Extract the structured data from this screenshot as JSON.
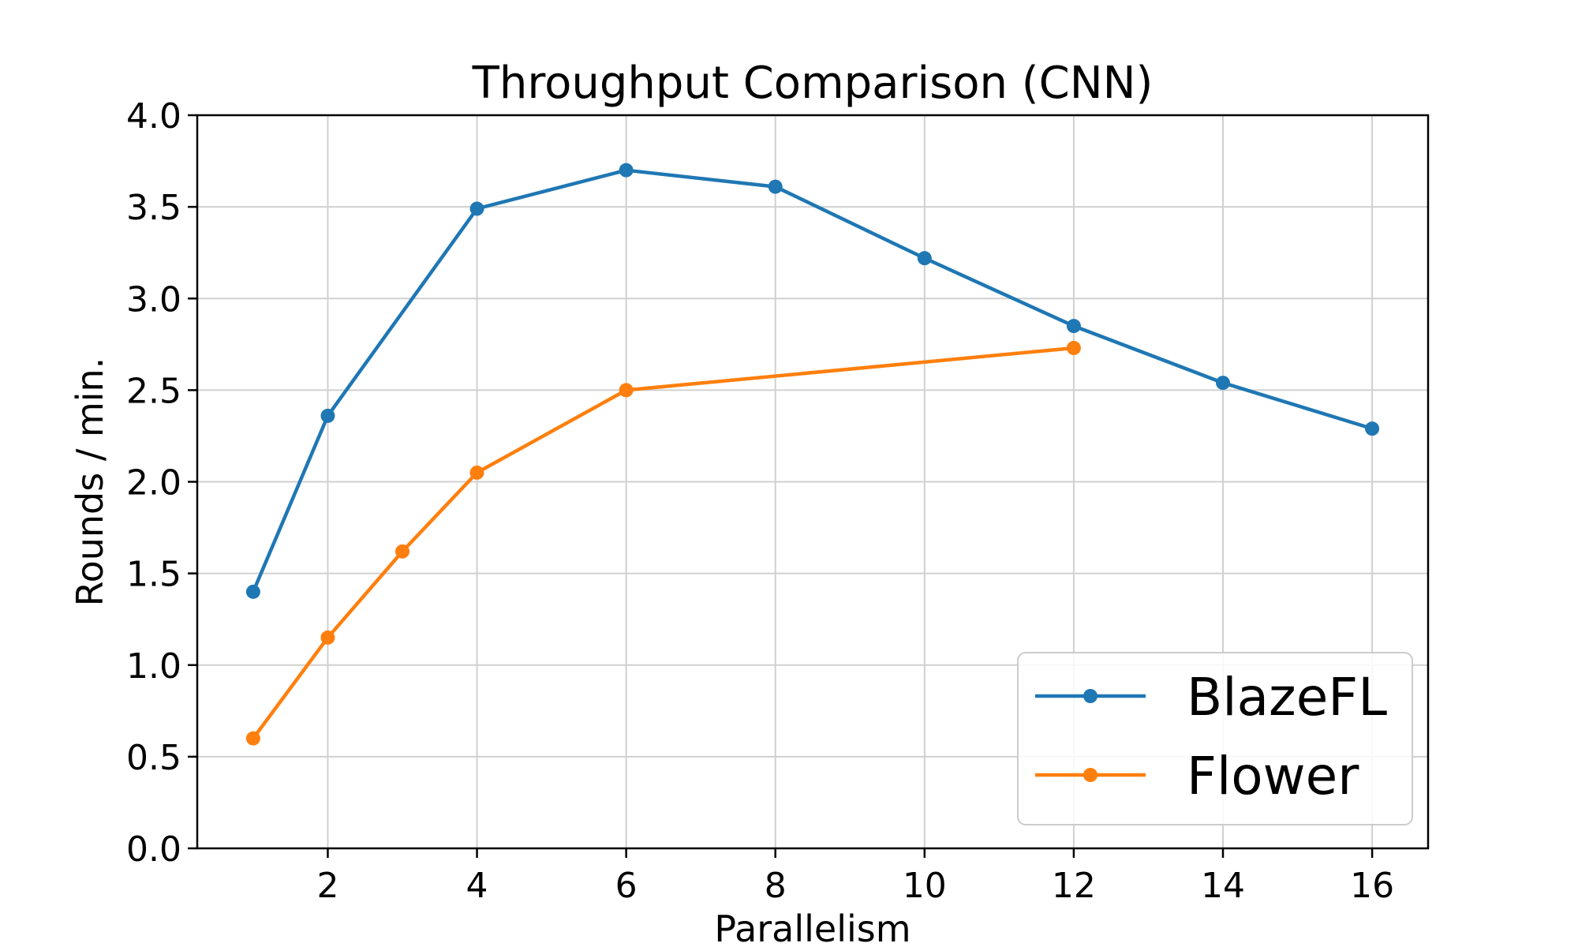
{
  "chart_data": {
    "type": "line",
    "title": "Throughput Comparison (CNN)",
    "xlabel": "Parallelism",
    "ylabel": "Rounds / min.",
    "xlim": [
      0.25,
      16.75
    ],
    "ylim": [
      0.0,
      4.0
    ],
    "xticks": [
      2,
      4,
      6,
      8,
      10,
      12,
      14,
      16
    ],
    "xtick_labels": [
      "2",
      "4",
      "6",
      "8",
      "10",
      "12",
      "14",
      "16"
    ],
    "yticks": [
      0.0,
      0.5,
      1.0,
      1.5,
      2.0,
      2.5,
      3.0,
      3.5,
      4.0
    ],
    "ytick_labels": [
      "0.0",
      "0.5",
      "1.0",
      "1.5",
      "2.0",
      "2.5",
      "3.0",
      "3.5",
      "4.0"
    ],
    "grid": true,
    "legend_position": "lower-right",
    "series": [
      {
        "name": "BlazeFL",
        "color": "#1f77b4",
        "marker": "circle",
        "x": [
          1,
          2,
          4,
          6,
          8,
          10,
          12,
          14,
          16
        ],
        "y": [
          1.4,
          2.36,
          3.49,
          3.7,
          3.61,
          3.22,
          2.85,
          2.54,
          2.29
        ]
      },
      {
        "name": "Flower",
        "color": "#ff7f0e",
        "marker": "circle",
        "x": [
          1,
          2,
          3,
          4,
          6,
          12
        ],
        "y": [
          0.6,
          1.15,
          1.62,
          2.05,
          2.5,
          2.73
        ]
      }
    ]
  }
}
